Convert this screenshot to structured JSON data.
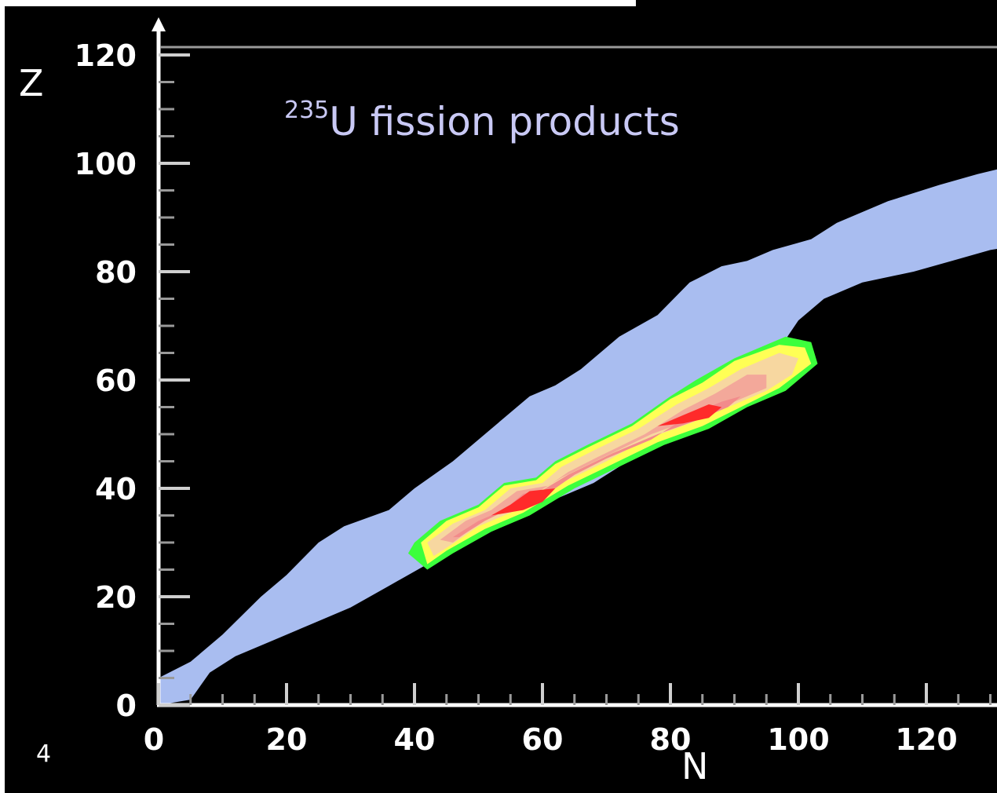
{
  "slide": {
    "page_number": "4"
  },
  "chart_data": {
    "type": "heatmap",
    "title": {
      "superscript": "235",
      "text": "U fission products"
    },
    "xlabel": "N",
    "ylabel": "Z",
    "xlim": [
      0,
      135
    ],
    "ylim": [
      0,
      122
    ],
    "x_ticks": [
      "0",
      "20",
      "40",
      "60",
      "80",
      "100",
      "120"
    ],
    "x_tick_values": [
      0,
      20,
      40,
      60,
      80,
      100,
      120
    ],
    "y_ticks": [
      "0",
      "20",
      "40",
      "60",
      "80",
      "100",
      "120"
    ],
    "y_tick_values": [
      0,
      20,
      40,
      60,
      80,
      100,
      120
    ],
    "grid": false,
    "colors": {
      "background": "#000000",
      "known_nuclei": "#a9bdf0",
      "yield_low": "#3cff3c",
      "yield_lowmid": "#ffff55",
      "yield_mid": "#f7d7a0",
      "yield_midhigh": "#f3a89a",
      "yield_high": "#f28b8b",
      "yield_peak": "#ff2a2a",
      "axis": "#ffffff",
      "title": "#c9c9f5"
    },
    "regions": [
      {
        "name": "known-nuclei-band",
        "color_key": "known_nuclei",
        "points": [
          [
            0,
            0
          ],
          [
            0,
            5
          ],
          [
            5,
            8
          ],
          [
            10,
            13
          ],
          [
            16,
            20
          ],
          [
            20,
            24
          ],
          [
            25,
            30
          ],
          [
            29,
            33
          ],
          [
            36,
            36
          ],
          [
            40,
            40
          ],
          [
            46,
            45
          ],
          [
            52,
            51
          ],
          [
            58,
            57
          ],
          [
            62,
            59
          ],
          [
            66,
            62
          ],
          [
            72,
            68
          ],
          [
            78,
            72
          ],
          [
            83,
            78
          ],
          [
            88,
            81
          ],
          [
            92,
            82
          ],
          [
            96,
            84
          ],
          [
            102,
            86
          ],
          [
            106,
            89
          ],
          [
            114,
            93
          ],
          [
            122,
            96
          ],
          [
            128,
            98
          ],
          [
            135,
            100
          ],
          [
            135,
            85
          ],
          [
            130,
            84
          ],
          [
            124,
            82
          ],
          [
            118,
            80
          ],
          [
            110,
            78
          ],
          [
            104,
            75
          ],
          [
            100,
            71
          ],
          [
            96,
            64
          ],
          [
            90,
            56
          ],
          [
            84,
            52
          ],
          [
            76,
            47
          ],
          [
            68,
            41
          ],
          [
            60,
            37
          ],
          [
            54,
            34
          ],
          [
            48,
            30
          ],
          [
            42,
            26
          ],
          [
            36,
            22
          ],
          [
            30,
            18
          ],
          [
            24,
            15
          ],
          [
            18,
            12
          ],
          [
            12,
            9
          ],
          [
            8,
            6
          ],
          [
            5,
            1
          ]
        ]
      },
      {
        "name": "yield-green-outline",
        "color_key": "yield_low",
        "points": [
          [
            40,
            30
          ],
          [
            44,
            34
          ],
          [
            50,
            37
          ],
          [
            54,
            41
          ],
          [
            59,
            42
          ],
          [
            62,
            45
          ],
          [
            67,
            48
          ],
          [
            74,
            52
          ],
          [
            80,
            57
          ],
          [
            84,
            60
          ],
          [
            90,
            64
          ],
          [
            98,
            68
          ],
          [
            102,
            67
          ],
          [
            103,
            63
          ],
          [
            98,
            58
          ],
          [
            92,
            55
          ],
          [
            86,
            51
          ],
          [
            79,
            48
          ],
          [
            72,
            44
          ],
          [
            65,
            40
          ],
          [
            58,
            35
          ],
          [
            52,
            32
          ],
          [
            46,
            28
          ],
          [
            42,
            25
          ],
          [
            39,
            28
          ]
        ]
      },
      {
        "name": "yield-yellow",
        "color_key": "yield_lowmid",
        "points": [
          [
            41,
            30
          ],
          [
            45,
            34
          ],
          [
            50,
            36.5
          ],
          [
            54,
            40.5
          ],
          [
            59,
            41.5
          ],
          [
            62,
            44.5
          ],
          [
            67,
            47.5
          ],
          [
            74,
            51.5
          ],
          [
            80,
            56.5
          ],
          [
            85,
            59.5
          ],
          [
            90,
            63.5
          ],
          [
            97,
            66.5
          ],
          [
            101,
            66
          ],
          [
            102,
            63
          ],
          [
            97,
            58.5
          ],
          [
            91,
            55
          ],
          [
            85,
            51.5
          ],
          [
            78,
            48.5
          ],
          [
            71,
            44.5
          ],
          [
            64,
            40.5
          ],
          [
            57,
            35.5
          ],
          [
            51,
            32.5
          ],
          [
            45,
            28.5
          ],
          [
            42,
            26
          ]
        ]
      },
      {
        "name": "yield-peach",
        "color_key": "yield_mid",
        "points": [
          [
            42,
            30
          ],
          [
            46,
            33.5
          ],
          [
            51,
            36
          ],
          [
            55,
            40
          ],
          [
            60,
            41
          ],
          [
            63,
            44
          ],
          [
            68,
            47
          ],
          [
            75,
            51
          ],
          [
            81,
            55.5
          ],
          [
            86,
            58.5
          ],
          [
            91,
            62
          ],
          [
            97,
            65
          ],
          [
            100,
            64
          ],
          [
            99,
            61
          ],
          [
            95,
            58
          ],
          [
            89,
            55
          ],
          [
            83,
            52
          ],
          [
            76,
            49
          ],
          [
            70,
            45
          ],
          [
            63,
            41
          ],
          [
            56,
            36
          ],
          [
            50,
            33
          ],
          [
            45,
            29
          ],
          [
            43,
            27.5
          ]
        ]
      },
      {
        "name": "yield-salmon",
        "color_key": "yield_midhigh",
        "points": [
          [
            44,
            30.5
          ],
          [
            48,
            34
          ],
          [
            52,
            36
          ],
          [
            56,
            39.5
          ],
          [
            61,
            40.5
          ],
          [
            64,
            43
          ],
          [
            69,
            46
          ],
          [
            76,
            50
          ],
          [
            82,
            54.5
          ],
          [
            87,
            57.5
          ],
          [
            92,
            61
          ],
          [
            95,
            61
          ],
          [
            95,
            58.5
          ],
          [
            90,
            56
          ],
          [
            84,
            53
          ],
          [
            77,
            50
          ],
          [
            70,
            46
          ],
          [
            63,
            42
          ],
          [
            56,
            37
          ],
          [
            50,
            33.5
          ],
          [
            46,
            30
          ]
        ]
      },
      {
        "name": "yield-pink",
        "color_key": "yield_high",
        "points": [
          [
            46,
            31
          ],
          [
            50,
            34
          ],
          [
            54,
            36
          ],
          [
            57,
            39
          ],
          [
            62,
            40
          ],
          [
            65,
            42.5
          ],
          [
            70,
            45.5
          ],
          [
            77,
            49
          ],
          [
            83,
            53.5
          ],
          [
            88,
            56
          ],
          [
            91,
            57
          ],
          [
            89,
            55
          ],
          [
            84,
            52.5
          ],
          [
            78,
            50
          ],
          [
            71,
            46.5
          ],
          [
            64,
            42.5
          ],
          [
            57,
            37.5
          ],
          [
            51,
            34
          ],
          [
            47,
            31
          ]
        ]
      },
      {
        "name": "yield-peak-light",
        "color_key": "yield_peak",
        "points": [
          [
            52,
            35
          ],
          [
            55,
            37
          ],
          [
            58,
            39.5
          ],
          [
            62,
            40
          ],
          [
            60,
            37.5
          ],
          [
            57,
            36
          ]
        ]
      },
      {
        "name": "yield-peak-heavy",
        "color_key": "yield_peak",
        "points": [
          [
            78,
            51.5
          ],
          [
            82,
            53.5
          ],
          [
            86,
            55.5
          ],
          [
            88,
            55
          ],
          [
            86,
            53
          ],
          [
            82,
            52
          ]
        ]
      }
    ]
  }
}
